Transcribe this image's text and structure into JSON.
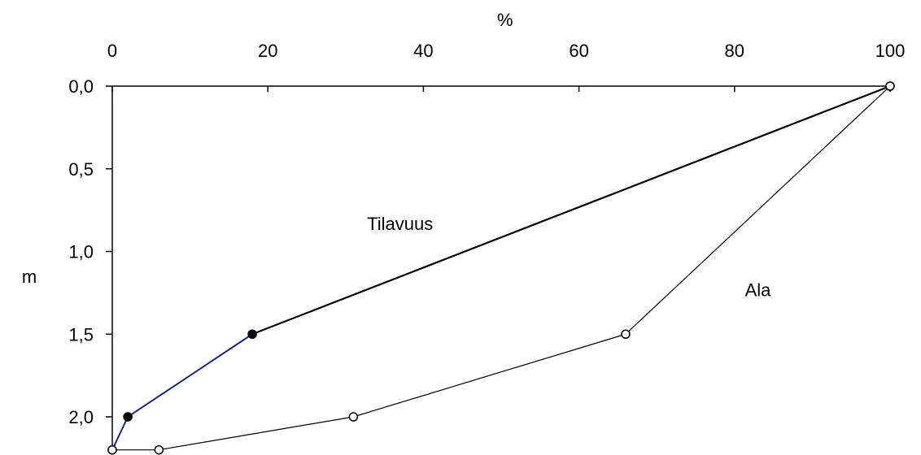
{
  "chart_data": {
    "type": "line",
    "title": "",
    "xlabel": "%",
    "ylabel": "m",
    "x_axis_position": "top",
    "y_axis_inverted": true,
    "xlim": [
      0,
      100
    ],
    "ylim": [
      0,
      2.2
    ],
    "x_ticks": [
      0,
      20,
      40,
      60,
      80,
      100
    ],
    "x_tick_labels": [
      "0",
      "20",
      "40",
      "60",
      "80",
      "100"
    ],
    "y_ticks": [
      0,
      0.5,
      1.0,
      1.5,
      2.0
    ],
    "y_tick_labels": [
      "0,0",
      "0,5",
      "1,0",
      "1,5",
      "2,0"
    ],
    "grid": false,
    "series": [
      {
        "label_text": "Tilavuus",
        "line_color": "#000000",
        "lower_segment_color": "#1a237e",
        "marker": "filled-circle",
        "points": [
          {
            "x": 100,
            "y": 0.0
          },
          {
            "x": 18,
            "y": 1.5
          },
          {
            "x": 2,
            "y": 2.0
          },
          {
            "x": 0,
            "y": 2.2
          }
        ]
      },
      {
        "label_text": "Ala",
        "line_color": "#000000",
        "marker": "open-circle",
        "points": [
          {
            "x": 100,
            "y": 0.0
          },
          {
            "x": 66,
            "y": 1.5
          },
          {
            "x": 31,
            "y": 2.0
          },
          {
            "x": 6,
            "y": 2.2
          },
          {
            "x": 0,
            "y": 2.2
          }
        ]
      }
    ],
    "annotations": [
      {
        "text": "Tilavuus",
        "x": 37,
        "y": 0.83
      },
      {
        "text": "Ala",
        "x": 83,
        "y": 1.23
      }
    ]
  }
}
